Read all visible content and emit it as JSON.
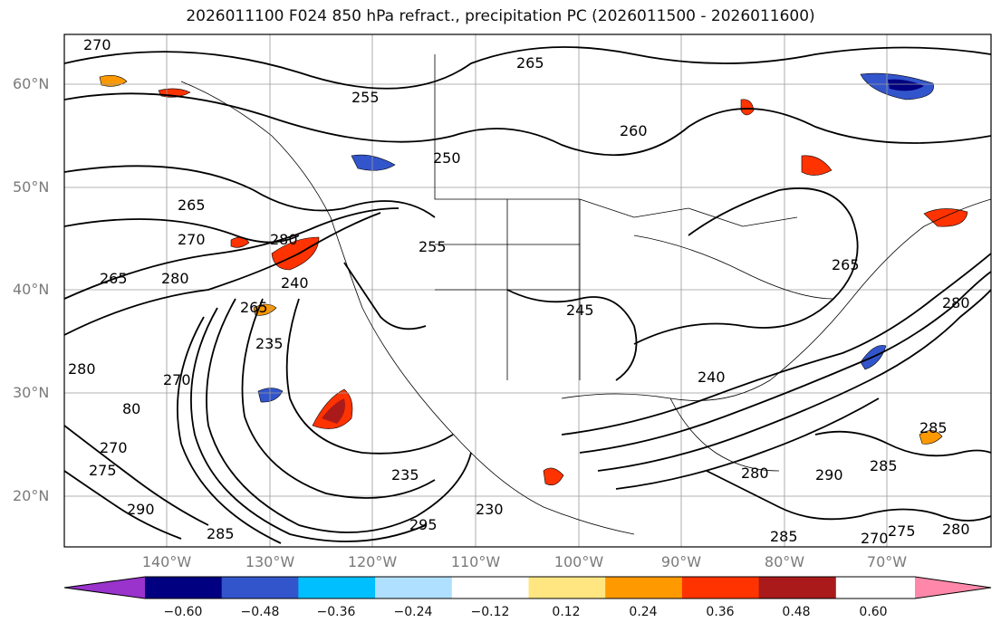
{
  "title": "2026011100 F024 850 hPa refract., precipitation PC (2026011500 - 2026011600)",
  "lat_labels": [
    "60°N",
    "50°N",
    "40°N",
    "30°N",
    "20°N"
  ],
  "lon_labels": [
    "140°W",
    "130°W",
    "120°W",
    "110°W",
    "100°W",
    "90°W",
    "80°W",
    "70°W"
  ],
  "colorbar": {
    "colors": [
      "#9933cc",
      "#000080",
      "#3355cc",
      "#00bfff",
      "#b0e0ff",
      "#ffffff",
      "#ffe680",
      "#ff9900",
      "#ff3300",
      "#aa1a1a",
      "#ff88aa"
    ],
    "ticks": [
      "−0.60",
      "−0.48",
      "−0.36",
      "−0.24",
      "−0.12",
      "0.12",
      "0.24",
      "0.36",
      "0.48",
      "0.60"
    ]
  },
  "contour_labels": [
    "270",
    "265",
    "255",
    "260",
    "250",
    "265",
    "270",
    "280",
    "265",
    "280",
    "265",
    "240",
    "235",
    "255",
    "245",
    "240",
    "280",
    "265",
    "280",
    "270",
    "80",
    "275",
    "270",
    "290",
    "285",
    "235",
    "295",
    "230",
    "280",
    "285",
    "290",
    "285",
    "275",
    "270",
    "280",
    "285"
  ]
}
